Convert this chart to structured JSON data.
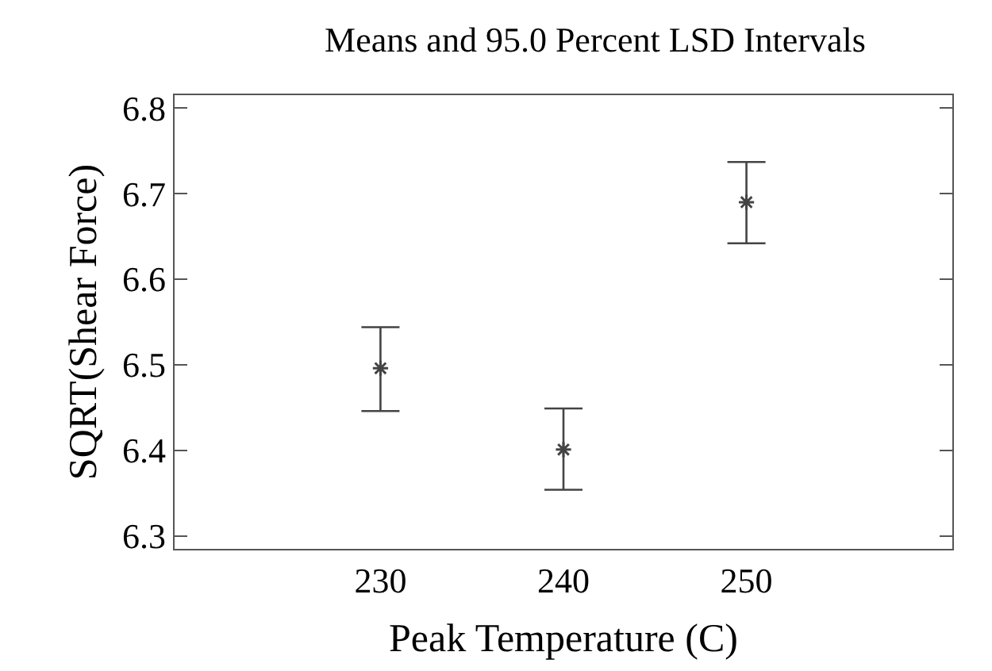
{
  "chart_data": {
    "type": "scatter",
    "title": "Means and 95.0 Percent LSD Intervals",
    "xlabel": "Peak Temperature (C)",
    "ylabel": "SQRT(Shear Force)",
    "x": [
      230,
      240,
      250
    ],
    "series": [
      {
        "color": "#444444",
        "values": [
          6.496,
          6.401,
          6.69
        ],
        "errors": [
          [
            6.446,
            6.544
          ],
          [
            6.354,
            6.449
          ],
          [
            6.642,
            6.737
          ]
        ]
      }
    ],
    "xlim": [
      218.75,
      261.25
    ],
    "xticks": [
      230,
      240,
      250
    ],
    "ylim": [
      6.285,
      6.815
    ],
    "yticks": [
      6.3,
      6.4,
      6.5,
      6.6,
      6.7,
      6.8
    ],
    "marker": "cross"
  }
}
